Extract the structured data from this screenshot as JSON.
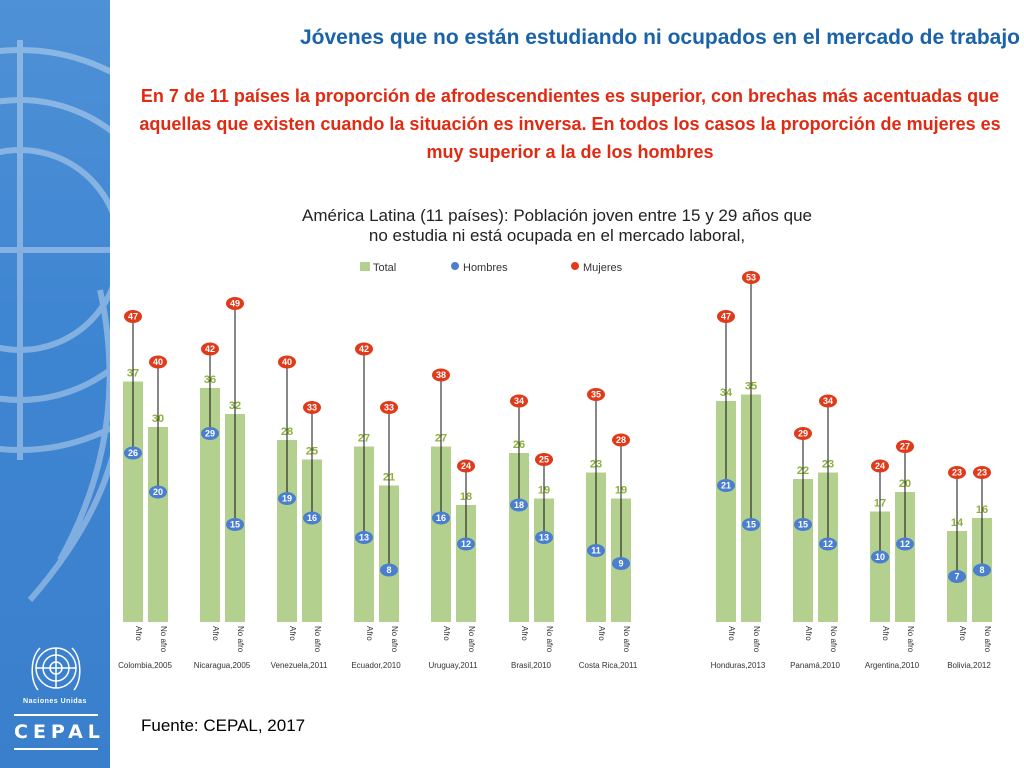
{
  "header": {
    "title": "Jóvenes que no están estudiando ni ocupados en el mercado de trabajo",
    "subtitle": "En 7 de 11 países la proporción de afrodescendientes es superior, con brechas más acentuadas que aquellas que existen cuando la situación es inversa. En todos los casos la proporción de mujeres es muy superior a la de los hombres"
  },
  "sidebar": {
    "un_label": "Naciones Unidas",
    "cepal_label": "CEPAL"
  },
  "footer": {
    "source": "Fuente: CEPAL, 2017"
  },
  "colors": {
    "total": "#b4d08e",
    "hombres": "#4a7fd0",
    "mujeres": "#e03a1a",
    "total_label": "#8cb23c",
    "title_blue": "#1b63a8",
    "subtitle_red": "#e02a12"
  },
  "chart_data": {
    "type": "bar",
    "title_lines": [
      "América Latina (11 países): Población joven entre 15 y 29 años que",
      "no estudia ni está ocupada en el mercado laboral,"
    ],
    "legend": [
      "Total",
      "Hombres",
      "Mujeres"
    ],
    "ylim": [
      0,
      55
    ],
    "bar_labels": [
      "Afro",
      "No afro"
    ],
    "countries": [
      {
        "name": "Colombia,2005",
        "afro": {
          "total": 37,
          "hombres": 26,
          "mujeres": 47
        },
        "no_afro": {
          "total": 30,
          "hombres": 20,
          "mujeres": 40
        }
      },
      {
        "name": "Nicaragua,2005",
        "afro": {
          "total": 36,
          "hombres": 29,
          "mujeres": 42
        },
        "no_afro": {
          "total": 32,
          "hombres": 15,
          "mujeres": 49
        }
      },
      {
        "name": "Venezuela,2011",
        "afro": {
          "total": 28,
          "hombres": 19,
          "mujeres": 40
        },
        "no_afro": {
          "total": 25,
          "hombres": 16,
          "mujeres": 33
        }
      },
      {
        "name": "Ecuador,2010",
        "afro": {
          "total": 27,
          "hombres": 13,
          "mujeres": 42
        },
        "no_afro": {
          "total": 21,
          "hombres": 8,
          "mujeres": 33
        }
      },
      {
        "name": "Uruguay,2011",
        "afro": {
          "total": 27,
          "hombres": 16,
          "mujeres": 38
        },
        "no_afro": {
          "total": 18,
          "hombres": 12,
          "mujeres": 24
        }
      },
      {
        "name": "Brasil,2010",
        "afro": {
          "total": 26,
          "hombres": 18,
          "mujeres": 34
        },
        "no_afro": {
          "total": 19,
          "hombres": 13,
          "mujeres": 25
        }
      },
      {
        "name": "Costa Rica,2011",
        "afro": {
          "total": 23,
          "hombres": 11,
          "mujeres": 35
        },
        "no_afro": {
          "total": 19,
          "hombres": 9,
          "mujeres": 28
        }
      },
      {
        "name": "Honduras,2013",
        "afro": {
          "total": 34,
          "hombres": 21,
          "mujeres": 47
        },
        "no_afro": {
          "total": 35,
          "hombres": 15,
          "mujeres": 53
        }
      },
      {
        "name": "Panamá,2010",
        "afro": {
          "total": 22,
          "hombres": 15,
          "mujeres": 29
        },
        "no_afro": {
          "total": 23,
          "hombres": 12,
          "mujeres": 34
        }
      },
      {
        "name": "Argentina,2010",
        "afro": {
          "total": 17,
          "hombres": 10,
          "mujeres": 24
        },
        "no_afro": {
          "total": 20,
          "hombres": 12,
          "mujeres": 27
        }
      },
      {
        "name": "Bolivia,2012",
        "afro": {
          "total": 14,
          "hombres": 7,
          "mujeres": 23
        },
        "no_afro": {
          "total": 16,
          "hombres": 8,
          "mujeres": 23
        }
      }
    ]
  }
}
